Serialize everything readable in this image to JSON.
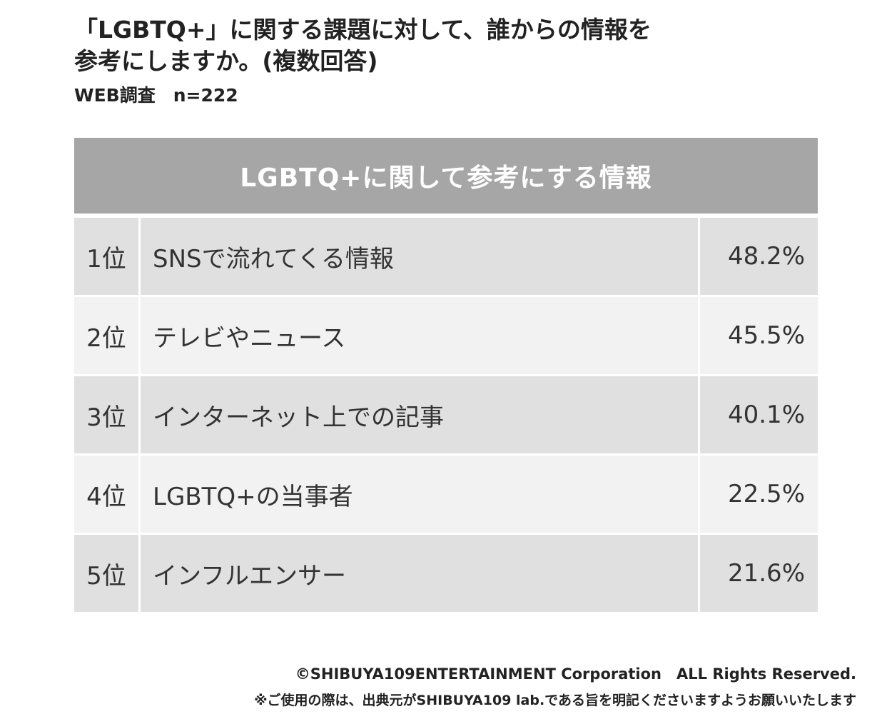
{
  "title": {
    "line1": "「LGBTQ+」に関する課題に対して、誰からの情報を",
    "line2": "参考にしますか。(複数回答)"
  },
  "subtitle": "WEB調査　n=222",
  "chart_data": {
    "type": "table",
    "header": "LGBTQ+に関して参考にする情報",
    "rows": [
      {
        "rank": "1位",
        "label": "SNSで流れてくる情報",
        "value": "48.2%"
      },
      {
        "rank": "2位",
        "label": "テレビやニュース",
        "value": "45.5%"
      },
      {
        "rank": "3位",
        "label": "インターネット上での記事",
        "value": "40.1%"
      },
      {
        "rank": "4位",
        "label": "LGBTQ+の当事者",
        "value": "22.5%"
      },
      {
        "rank": "5位",
        "label": "インフルエンサー",
        "value": "21.6%"
      }
    ]
  },
  "footer": {
    "copyright": "©SHIBUYA109ENTERTAINMENT Corporation　ALL Rights Reserved.",
    "notice": "※ご使用の際は、出典元がSHIBUYA109 lab.である旨を明記くださいますようお願いいたします"
  },
  "colors": {
    "header_bg": "#a6a6a6",
    "row_dark": "#e0e0e0",
    "row_light": "#f2f2f2"
  }
}
